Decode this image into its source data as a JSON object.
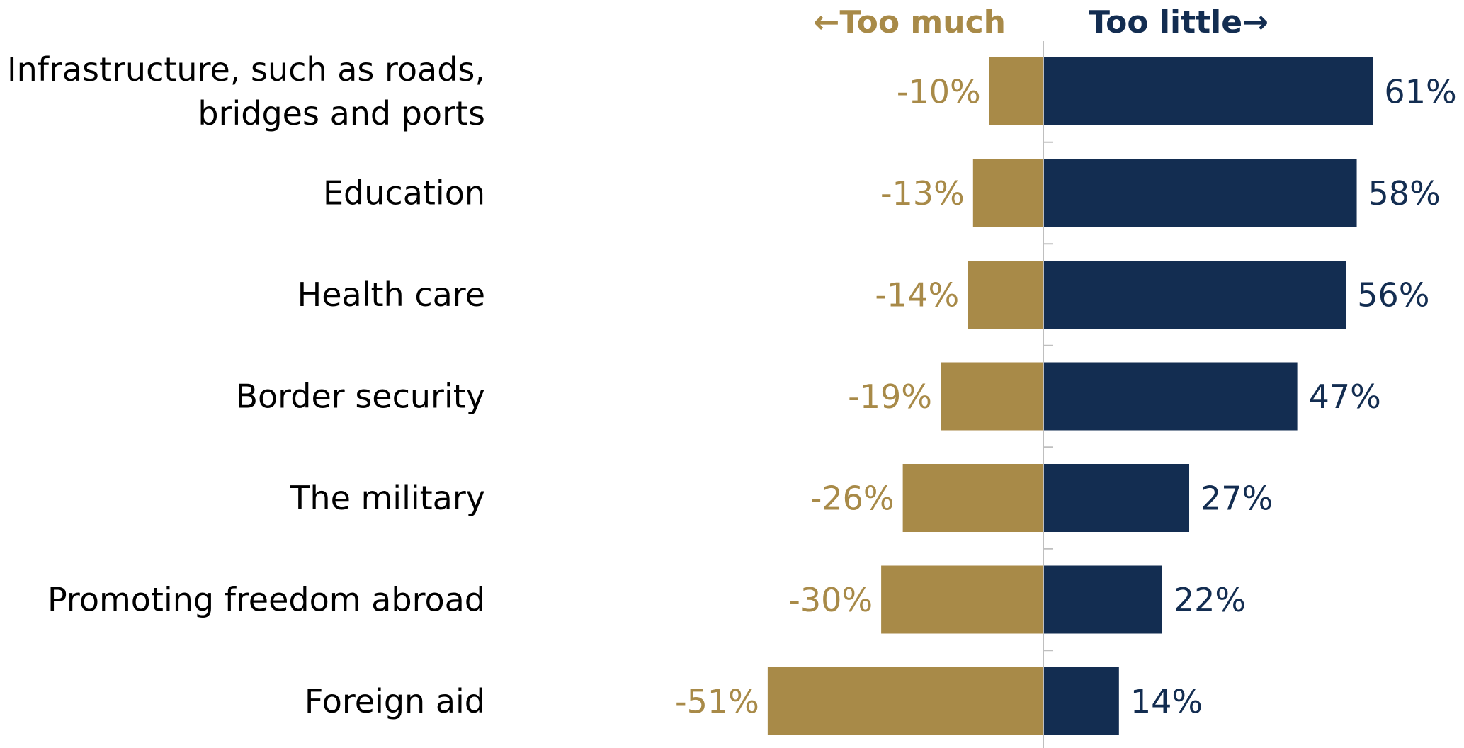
{
  "chart_data": {
    "type": "bar",
    "orientation": "horizontal",
    "stacking": "diverging",
    "header_left": "←Too much",
    "header_right": "Too little→",
    "categories": [
      [
        "Infrastructure, such as roads,",
        "bridges and ports"
      ],
      [
        "Education"
      ],
      [
        "Health care"
      ],
      [
        "Border security"
      ],
      [
        "The military"
      ],
      [
        "Promoting freedom abroad"
      ],
      [
        "Foreign aid"
      ]
    ],
    "series": [
      {
        "values": [
          -10,
          -13,
          -14,
          -19,
          -26,
          -30,
          -51
        ],
        "labels": [
          "-10%",
          "-13%",
          "-14%",
          "-19%",
          "-26%",
          "-30%",
          "-51%"
        ],
        "color": "#A88A48"
      },
      {
        "values": [
          61,
          58,
          56,
          47,
          27,
          22,
          14
        ],
        "labels": [
          "61%",
          "58%",
          "56%",
          "47%",
          "27%",
          "22%",
          "14%"
        ],
        "color": "#132D51"
      }
    ],
    "xlim": [
      -60,
      70
    ],
    "grid": false,
    "legend": "none"
  }
}
